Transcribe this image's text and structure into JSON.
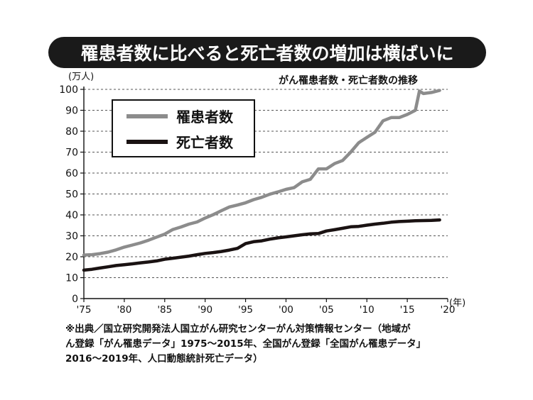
{
  "banner": {
    "title": "罹患者数に比べると死亡者数の増加は横ばいに"
  },
  "chart_data": {
    "type": "line",
    "title": "がん罹患者数・死亡者数の推移",
    "ylabel": "(万人)",
    "xlabel": "(年)",
    "xlim": [
      1975,
      2020
    ],
    "ylim": [
      0,
      100
    ],
    "yticks": [
      0,
      10,
      20,
      30,
      40,
      50,
      60,
      70,
      80,
      90,
      100
    ],
    "xticks": [
      {
        "value": 1975,
        "label": "'75"
      },
      {
        "value": 1980,
        "label": "'80"
      },
      {
        "value": 1985,
        "label": "'85"
      },
      {
        "value": 1990,
        "label": "'90"
      },
      {
        "value": 1995,
        "label": "'95"
      },
      {
        "value": 2000,
        "label": "'00"
      },
      {
        "value": 2005,
        "label": "'05"
      },
      {
        "value": 2010,
        "label": "'10"
      },
      {
        "value": 2015,
        "label": "'15"
      },
      {
        "value": 2020,
        "label": "'20"
      }
    ],
    "grid": "horizontal-dashed",
    "legend_position": "top-left",
    "series": [
      {
        "name": "罹患者数",
        "color": "#8c8c8c",
        "points": [
          [
            1975,
            20.8
          ],
          [
            1976,
            21.0
          ],
          [
            1977,
            21.5
          ],
          [
            1978,
            22.2
          ],
          [
            1979,
            23.3
          ],
          [
            1980,
            24.6
          ],
          [
            1981,
            25.6
          ],
          [
            1982,
            26.6
          ],
          [
            1983,
            27.9
          ],
          [
            1984,
            29.4
          ],
          [
            1985,
            30.8
          ],
          [
            1986,
            33.0
          ],
          [
            1987,
            34.2
          ],
          [
            1988,
            35.6
          ],
          [
            1989,
            36.6
          ],
          [
            1990,
            38.5
          ],
          [
            1991,
            40.1
          ],
          [
            1992,
            42.0
          ],
          [
            1993,
            43.8
          ],
          [
            1994,
            44.7
          ],
          [
            1995,
            45.8
          ],
          [
            1996,
            47.3
          ],
          [
            1997,
            48.4
          ],
          [
            1998,
            49.9
          ],
          [
            1999,
            51.0
          ],
          [
            2000,
            52.2
          ],
          [
            2001,
            53.0
          ],
          [
            2002,
            55.8
          ],
          [
            2003,
            57.0
          ],
          [
            2004,
            62.0
          ],
          [
            2005,
            62.0
          ],
          [
            2006,
            64.5
          ],
          [
            2007,
            66.0
          ],
          [
            2008,
            70.0
          ],
          [
            2009,
            74.5
          ],
          [
            2010,
            77.0
          ],
          [
            2011,
            79.5
          ],
          [
            2012,
            85.0
          ],
          [
            2013,
            86.5
          ],
          [
            2014,
            86.5
          ],
          [
            2015,
            88.0
          ],
          [
            2016,
            90.0
          ],
          [
            2016.5,
            99.2
          ],
          [
            2017,
            98.0
          ],
          [
            2018,
            98.5
          ],
          [
            2019,
            99.5
          ]
        ]
      },
      {
        "name": "死亡者数",
        "color": "#1a1212",
        "points": [
          [
            1975,
            13.6
          ],
          [
            1976,
            14.0
          ],
          [
            1977,
            14.6
          ],
          [
            1978,
            15.2
          ],
          [
            1979,
            15.8
          ],
          [
            1980,
            16.2
          ],
          [
            1981,
            16.6
          ],
          [
            1982,
            17.1
          ],
          [
            1983,
            17.5
          ],
          [
            1984,
            18.0
          ],
          [
            1985,
            18.8
          ],
          [
            1986,
            19.3
          ],
          [
            1987,
            19.8
          ],
          [
            1988,
            20.3
          ],
          [
            1989,
            21.0
          ],
          [
            1990,
            21.6
          ],
          [
            1991,
            22.0
          ],
          [
            1992,
            22.5
          ],
          [
            1993,
            23.2
          ],
          [
            1994,
            24.0
          ],
          [
            1995,
            26.3
          ],
          [
            1996,
            27.2
          ],
          [
            1997,
            27.6
          ],
          [
            1998,
            28.4
          ],
          [
            1999,
            29.0
          ],
          [
            2000,
            29.5
          ],
          [
            2001,
            30.0
          ],
          [
            2002,
            30.5
          ],
          [
            2003,
            30.9
          ],
          [
            2004,
            31.1
          ],
          [
            2005,
            32.3
          ],
          [
            2006,
            32.9
          ],
          [
            2007,
            33.6
          ],
          [
            2008,
            34.3
          ],
          [
            2009,
            34.5
          ],
          [
            2010,
            35.1
          ],
          [
            2011,
            35.6
          ],
          [
            2012,
            36.0
          ],
          [
            2013,
            36.5
          ],
          [
            2014,
            36.8
          ],
          [
            2015,
            37.0
          ],
          [
            2016,
            37.2
          ],
          [
            2017,
            37.3
          ],
          [
            2018,
            37.4
          ],
          [
            2019,
            37.6
          ]
        ]
      }
    ]
  },
  "footnote": {
    "lines": [
      "※出典／国立研究開発法人国立がん研究センターがん対策情報センター（地域が",
      "ん登録「がん罹患データ」1975〜2015年、全国がん登録「全国がん罹患データ」",
      "2016〜2019年、人口動態統計死亡データ）"
    ]
  }
}
